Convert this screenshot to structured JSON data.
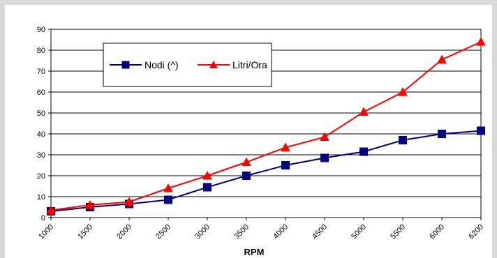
{
  "chart_data": {
    "type": "line",
    "xlabel": "RPM",
    "ylabel": "",
    "ylim": [
      0,
      90
    ],
    "yticks": [
      0,
      10,
      20,
      30,
      40,
      50,
      60,
      70,
      80,
      90
    ],
    "categories": [
      "1000",
      "1500",
      "2000",
      "2500",
      "3000",
      "3500",
      "4000",
      "4500",
      "5000",
      "5500",
      "6000",
      "6200"
    ],
    "grid": true,
    "legend_position": "top-left",
    "series": [
      {
        "name": "Nodi (^)",
        "color": "#000080",
        "marker": "square",
        "values": [
          3,
          5,
          6.5,
          8.5,
          14.5,
          20,
          25,
          28.5,
          31.5,
          37,
          40,
          41.5
        ]
      },
      {
        "name": "Litri/Ora",
        "color": "#ff0000",
        "marker": "triangle",
        "values": [
          3.5,
          6,
          7.5,
          14,
          20,
          26.5,
          33.5,
          38.5,
          50.5,
          60,
          75.5,
          84
        ]
      }
    ]
  }
}
